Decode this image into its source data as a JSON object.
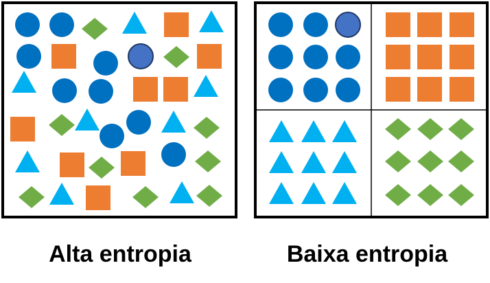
{
  "labels": {
    "high_entropy": "Alta entropia",
    "low_entropy": "Baixa entropia"
  },
  "colors": {
    "circle": "#0070C0",
    "circle_highlight": "#4472C4",
    "circle_outline": "#1F3864",
    "square": "#ED7D31",
    "triangle": "#00B0F0",
    "diamond": "#70AD47",
    "frame": "#000000"
  },
  "shape_kinds": [
    "circle",
    "square",
    "triangle",
    "diamond"
  ]
}
